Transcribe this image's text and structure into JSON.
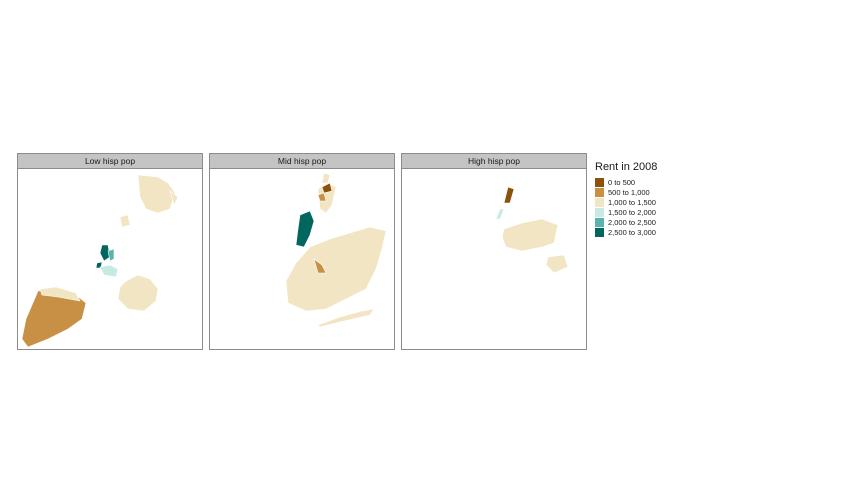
{
  "legend": {
    "title": "Rent in 2008",
    "items": [
      {
        "label": "0 to 500",
        "color": "#8c510a"
      },
      {
        "label": "500 to 1,000",
        "color": "#c89044"
      },
      {
        "label": "1,000 to 1,500",
        "color": "#f2e5c3"
      },
      {
        "label": "1,500 to 2,000",
        "color": "#c7eae5"
      },
      {
        "label": "2,000 to 2,500",
        "color": "#5ab4ac"
      },
      {
        "label": "2,500 to 3,000",
        "color": "#01665e"
      }
    ]
  },
  "panels": [
    {
      "label": "Low hisp pop"
    },
    {
      "label": "Mid hisp pop"
    },
    {
      "label": "High hisp pop"
    }
  ]
}
